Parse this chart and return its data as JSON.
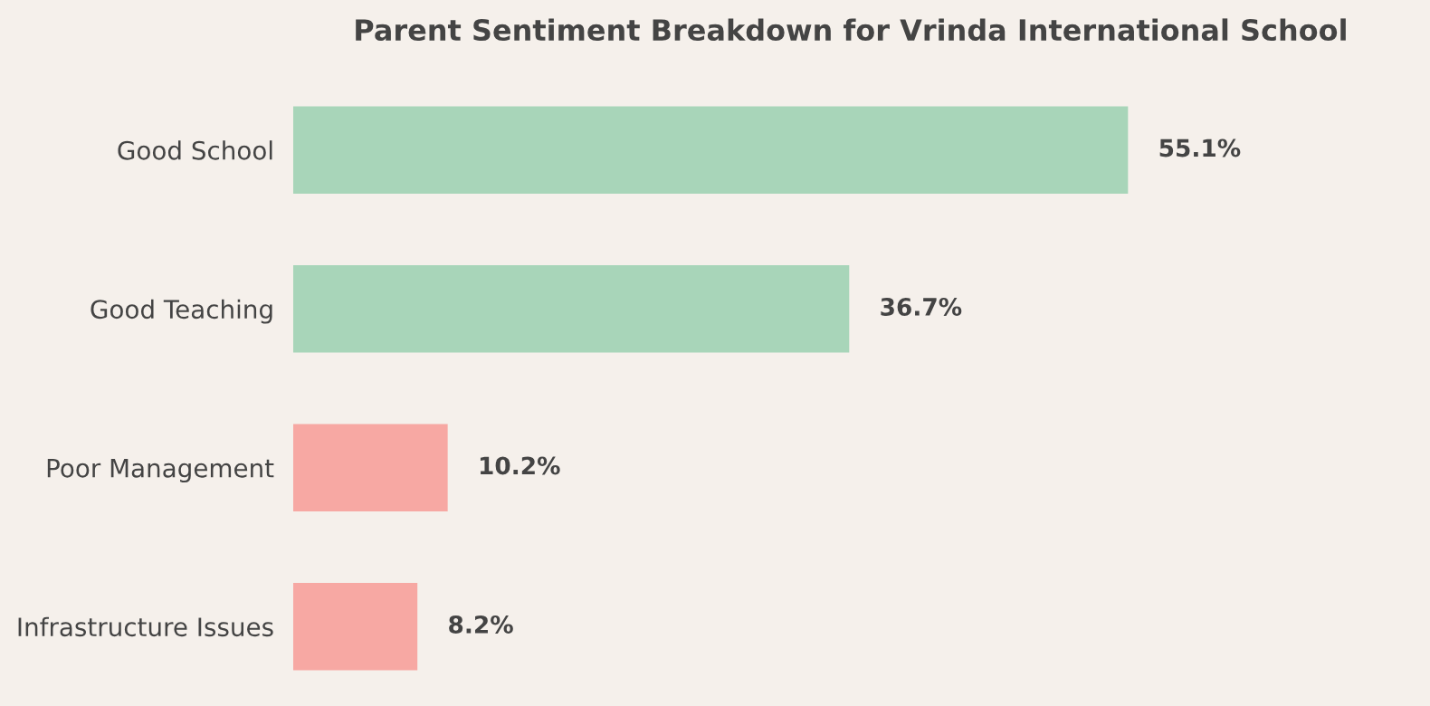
{
  "chart_data": {
    "type": "bar",
    "orientation": "horizontal",
    "title": "Parent Sentiment Breakdown for Vrinda International School",
    "categories": [
      "Good School",
      "Good Teaching",
      "Poor Management",
      "Infrastructure Issues"
    ],
    "values": [
      55.1,
      36.7,
      10.2,
      8.2
    ],
    "colors": [
      "#a8d5b9",
      "#a8d5b9",
      "#f7a8a3",
      "#f7a8a3"
    ],
    "value_labels": [
      "55.1%",
      "36.7%",
      "10.2%",
      "8.2%"
    ],
    "tick_labels": "y",
    "grid": false,
    "legend": false
  }
}
